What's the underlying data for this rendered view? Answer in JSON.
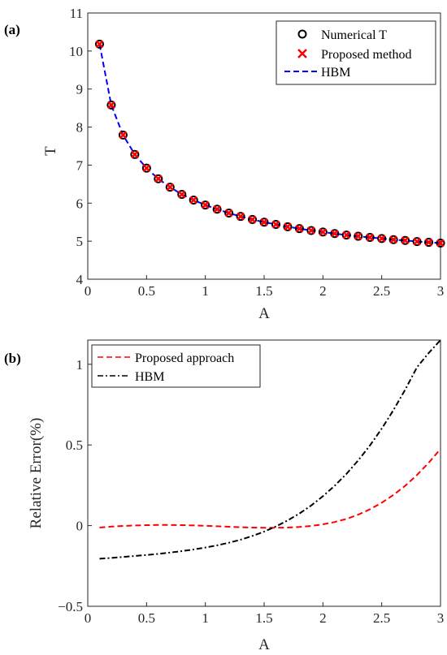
{
  "chart_data": [
    {
      "panel_label": "(a)",
      "type": "line",
      "xlabel": "A",
      "ylabel": "T",
      "xlim": [
        0,
        3
      ],
      "ylim": [
        4,
        11
      ],
      "xticks": [
        "0",
        "0.5",
        "1",
        "1.5",
        "2",
        "2.5",
        "3"
      ],
      "yticks": [
        "4",
        "5",
        "6",
        "7",
        "8",
        "9",
        "10",
        "11"
      ],
      "grid": false,
      "legend_position": "top-right",
      "x": [
        0.1,
        0.2,
        0.3,
        0.4,
        0.5,
        0.6,
        0.7,
        0.8,
        0.9,
        1.0,
        1.1,
        1.2,
        1.3,
        1.4,
        1.5,
        1.6,
        1.7,
        1.8,
        1.9,
        2.0,
        2.1,
        2.2,
        2.3,
        2.4,
        2.5,
        2.6,
        2.7,
        2.8,
        2.9,
        3.0
      ],
      "series": [
        {
          "name": "Numerical T",
          "style": "black-circle-marker",
          "color": "#000000",
          "values": [
            10.18,
            8.58,
            7.79,
            7.28,
            6.92,
            6.64,
            6.42,
            6.23,
            6.08,
            5.95,
            5.84,
            5.74,
            5.65,
            5.57,
            5.5,
            5.44,
            5.38,
            5.33,
            5.28,
            5.24,
            5.2,
            5.16,
            5.13,
            5.1,
            5.07,
            5.04,
            5.02,
            4.99,
            4.97,
            4.95
          ]
        },
        {
          "name": "Proposed method",
          "style": "red-x-marker",
          "color": "#ff0000",
          "values": [
            10.18,
            8.58,
            7.79,
            7.28,
            6.92,
            6.64,
            6.42,
            6.23,
            6.08,
            5.95,
            5.84,
            5.74,
            5.65,
            5.57,
            5.5,
            5.44,
            5.38,
            5.33,
            5.28,
            5.24,
            5.2,
            5.16,
            5.13,
            5.1,
            5.07,
            5.04,
            5.02,
            4.99,
            4.97,
            4.95
          ]
        },
        {
          "name": "HBM",
          "style": "blue-dashed-line",
          "color": "#0000ff",
          "values": [
            10.18,
            8.58,
            7.79,
            7.28,
            6.92,
            6.64,
            6.42,
            6.23,
            6.08,
            5.95,
            5.84,
            5.74,
            5.65,
            5.57,
            5.5,
            5.44,
            5.38,
            5.33,
            5.28,
            5.24,
            5.2,
            5.16,
            5.13,
            5.1,
            5.07,
            5.04,
            5.02,
            4.99,
            4.97,
            4.95
          ]
        }
      ]
    },
    {
      "panel_label": "(b)",
      "type": "line",
      "xlabel": "A",
      "ylabel": "Relative Error(%)",
      "xlim": [
        0,
        3
      ],
      "ylim": [
        -0.5,
        1.15
      ],
      "xticks": [
        "0",
        "0.5",
        "1",
        "1.5",
        "2",
        "2.5",
        "3"
      ],
      "yticks": [
        "−0.5",
        "0",
        "0.5",
        "1"
      ],
      "grid": false,
      "legend_position": "top-left",
      "x": [
        0.1,
        0.2,
        0.3,
        0.4,
        0.5,
        0.6,
        0.7,
        0.8,
        0.9,
        1.0,
        1.1,
        1.2,
        1.3,
        1.4,
        1.5,
        1.6,
        1.7,
        1.8,
        1.9,
        2.0,
        2.1,
        2.2,
        2.3,
        2.4,
        2.5,
        2.6,
        2.7,
        2.8,
        2.9,
        3.0
      ],
      "series": [
        {
          "name": "Proposed approach",
          "style": "red-dashed-line",
          "color": "#ff0000",
          "values": [
            -0.012,
            -0.006,
            -0.002,
            0.001,
            0.003,
            0.004,
            0.004,
            0.003,
            0.001,
            -0.001,
            -0.004,
            -0.007,
            -0.01,
            -0.012,
            -0.013,
            -0.013,
            -0.012,
            -0.008,
            -0.002,
            0.008,
            0.022,
            0.042,
            0.068,
            0.101,
            0.142,
            0.19,
            0.247,
            0.314,
            0.39,
            0.475
          ]
        },
        {
          "name": "HBM",
          "style": "black-dashdot-line",
          "color": "#000000",
          "values": [
            -0.205,
            -0.2,
            -0.194,
            -0.188,
            -0.182,
            -0.175,
            -0.167,
            -0.158,
            -0.148,
            -0.136,
            -0.122,
            -0.106,
            -0.087,
            -0.064,
            -0.037,
            -0.005,
            0.032,
            0.075,
            0.125,
            0.182,
            0.247,
            0.321,
            0.404,
            0.497,
            0.601,
            0.716,
            0.843,
            0.982,
            1.07,
            1.15
          ]
        }
      ]
    }
  ]
}
